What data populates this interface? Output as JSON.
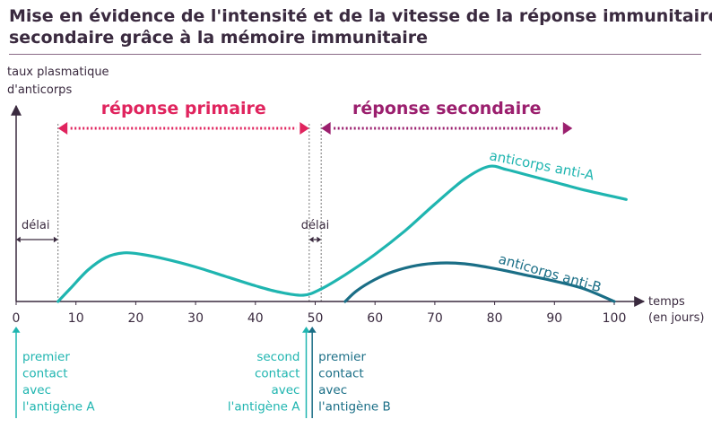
{
  "title_line1": "Mise en évidence de l'intensité et de la vitesse de la réponse immunitaire",
  "title_line2": "secondaire grâce à la mémoire immunitaire",
  "colors": {
    "primary_phase": "#e0245e",
    "secondary_phase": "#9b1f6e",
    "anti_a": "#1fb5b0",
    "anti_b": "#1a6e86",
    "axis": "#3a2a3f"
  },
  "chart_data": {
    "type": "line",
    "title": "Mise en évidence de l'intensité et de la vitesse de la réponse immunitaire secondaire grâce à la mémoire immunitaire",
    "ylabel_line1": "taux plasmatique",
    "ylabel_line2": "d'anticorps",
    "xlabel_line1": "temps",
    "xlabel_line2": "(en jours)",
    "xlim": [
      0,
      105
    ],
    "ylim": [
      0,
      100
    ],
    "x_ticks": [
      0,
      10,
      20,
      30,
      40,
      50,
      60,
      70,
      80,
      90,
      100
    ],
    "y_tick_labels": false,
    "grid": false,
    "series": [
      {
        "name": "anticorps anti-A",
        "points": [
          [
            7,
            0
          ],
          [
            9,
            8
          ],
          [
            12,
            20
          ],
          [
            15,
            28
          ],
          [
            18,
            31
          ],
          [
            21,
            30
          ],
          [
            25,
            27
          ],
          [
            30,
            22
          ],
          [
            35,
            16
          ],
          [
            40,
            10
          ],
          [
            44,
            6
          ],
          [
            48,
            4
          ],
          [
            51,
            8
          ],
          [
            55,
            17
          ],
          [
            60,
            30
          ],
          [
            65,
            45
          ],
          [
            70,
            62
          ],
          [
            75,
            78
          ],
          [
            79,
            86
          ],
          [
            82,
            84
          ],
          [
            86,
            80
          ],
          [
            90,
            76
          ],
          [
            95,
            71
          ],
          [
            102,
            65
          ]
        ]
      },
      {
        "name": "anticorps anti-B",
        "points": [
          [
            55,
            0
          ],
          [
            57,
            7
          ],
          [
            60,
            14
          ],
          [
            63,
            19
          ],
          [
            67,
            23
          ],
          [
            71,
            24.5
          ],
          [
            75,
            24
          ],
          [
            80,
            21
          ],
          [
            85,
            17
          ],
          [
            90,
            13
          ],
          [
            95,
            8
          ],
          [
            100,
            0
          ]
        ]
      }
    ],
    "phases": [
      {
        "label": "réponse primaire",
        "start": 7,
        "end": 49
      },
      {
        "label": "réponse secondaire",
        "start": 51,
        "end": 93
      }
    ],
    "delays": [
      {
        "label": "délai",
        "start": 0,
        "end": 7
      },
      {
        "label": "délai",
        "start": 49,
        "end": 51
      }
    ],
    "events": [
      {
        "x": 0,
        "lines": [
          "premier",
          "contact",
          "avec",
          "l'antigène A"
        ],
        "align": "left"
      },
      {
        "x": 48.5,
        "lines": [
          "second",
          "contact",
          "avec",
          "l'antigène A"
        ],
        "align": "right"
      },
      {
        "x": 49.5,
        "lines": [
          "premier",
          "contact",
          "avec",
          "l'antigène B"
        ],
        "align": "left"
      }
    ]
  }
}
